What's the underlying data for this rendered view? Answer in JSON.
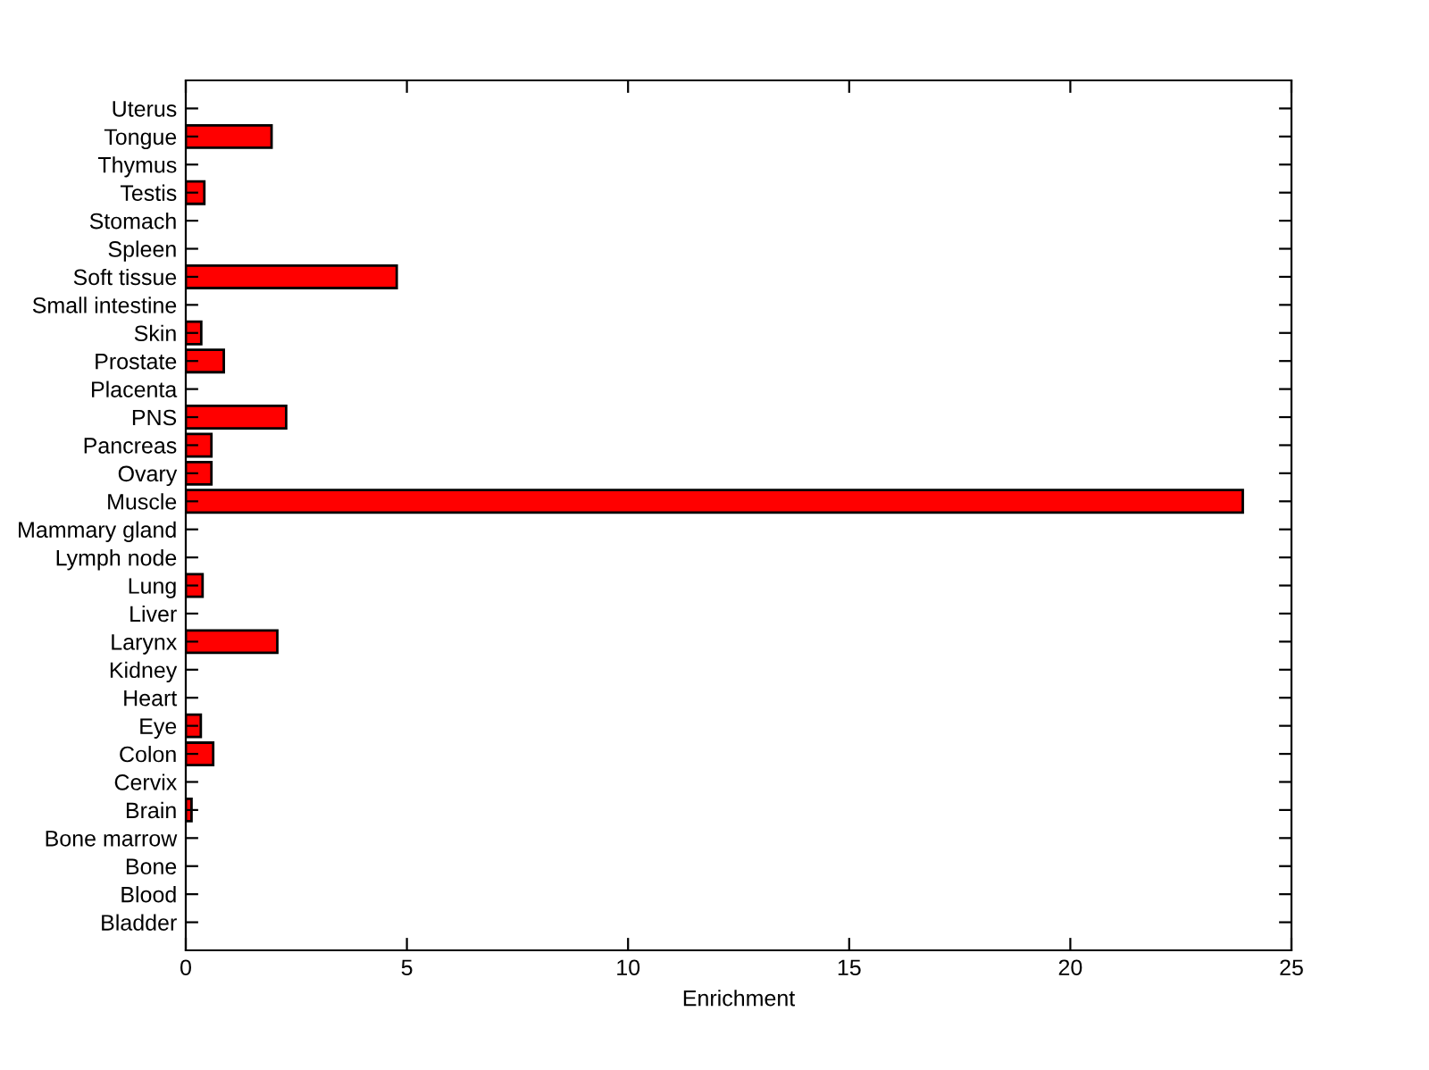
{
  "chart_data": {
    "type": "bar",
    "orientation": "horizontal",
    "xlabel": "Enrichment",
    "categories": [
      "Uterus",
      "Tongue",
      "Thymus",
      "Testis",
      "Stomach",
      "Spleen",
      "Soft tissue",
      "Small intestine",
      "Skin",
      "Prostate",
      "Placenta",
      "PNS",
      "Pancreas",
      "Ovary",
      "Muscle",
      "Mammary gland",
      "Lymph node",
      "Lung",
      "Liver",
      "Larynx",
      "Kidney",
      "Heart",
      "Eye",
      "Colon",
      "Cervix",
      "Brain",
      "Bone marrow",
      "Bone",
      "Blood",
      "Bladder"
    ],
    "values": [
      0,
      1.94,
      0,
      0.42,
      0,
      0,
      4.77,
      0,
      0.35,
      0.86,
      0,
      2.27,
      0.58,
      0.58,
      23.9,
      0,
      0,
      0.38,
      0,
      2.07,
      0,
      0,
      0.34,
      0.62,
      0,
      0.13,
      0,
      0,
      0,
      0
    ],
    "color": "#ff0000",
    "xlim": [
      0,
      25
    ],
    "xticks": [
      0,
      5,
      10,
      15,
      20,
      25
    ],
    "grid": false,
    "legend": false
  }
}
